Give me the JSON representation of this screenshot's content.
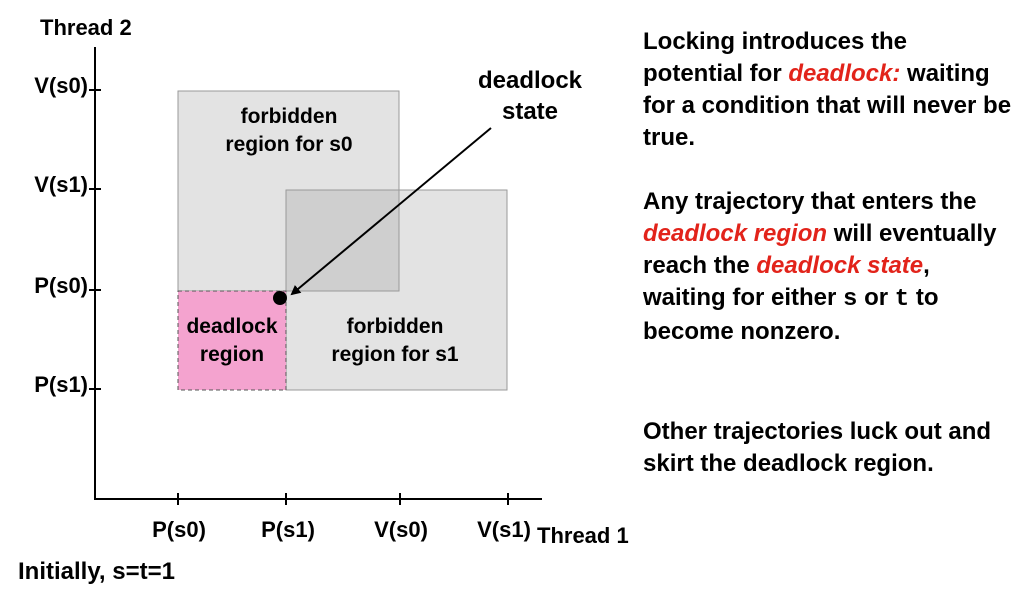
{
  "axes": {
    "y_title": "Thread 2",
    "x_title": "Thread 1",
    "y_ticks": [
      "V(s0)",
      "V(s1)",
      "P(s0)",
      "P(s1)"
    ],
    "x_ticks": [
      "P(s0)",
      "P(s1)",
      "V(s0)",
      "V(s1)"
    ]
  },
  "regions": {
    "forbidden_s0": [
      "forbidden",
      "region for s0"
    ],
    "forbidden_s1": [
      "forbidden",
      "region for s1"
    ],
    "deadlock": [
      "deadlock",
      "region"
    ]
  },
  "callout": [
    "deadlock",
    "state"
  ],
  "colors": {
    "forbidden_fill": "#e3e3e3",
    "overlap_fill": "#cfcfcf",
    "deadlock_fill": "#f4a3cf",
    "accent_red": "#e2231a"
  },
  "paragraphs": {
    "p1": {
      "a": "Locking introduces  the potential for ",
      "b": "deadlock:",
      "c": " waiting for a condition that will never be true."
    },
    "p2": {
      "a": "Any trajectory that enters the ",
      "b": "deadlock region",
      "c": " will eventually reach the ",
      "d": "deadlock state",
      "e": ", waiting for either ",
      "f": "s",
      "g": " or ",
      "h": "t",
      "i": " to become nonzero."
    },
    "p3": "Other trajectories luck out and skirt the deadlock region."
  },
  "footer": "Initially, s=t=1"
}
